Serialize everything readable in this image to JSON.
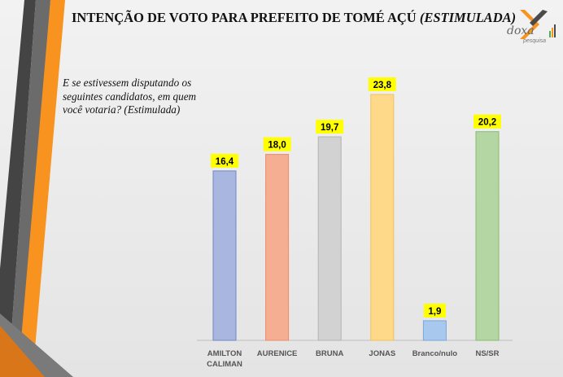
{
  "title_main": "INTENÇÃO DE VOTO PARA PREFEITO DE TOMÉ AÇÚ",
  "title_italic": "(ESTIMULADA)",
  "question": "E se estivessem disputando os seguintes candidatos, em quem você votaria? (Estimulada)",
  "logo": {
    "name": "doxa",
    "sub": "pesquisa",
    "colors": [
      "#f7941d",
      "#4a4a4a"
    ]
  },
  "chart_data": {
    "type": "bar",
    "categories": [
      "AMILTON CALIMAN",
      "AURENICE",
      "BRUNA",
      "JONAS",
      "Branco/nulo",
      "NS/SR"
    ],
    "values": [
      16.4,
      18.0,
      19.7,
      23.8,
      1.9,
      20.2
    ],
    "value_labels": [
      "16,4",
      "18,0",
      "19,7",
      "23,8",
      "1,9",
      "20,2"
    ],
    "colors": [
      "#a9b7e0",
      "#f6ae92",
      "#d2d2d2",
      "#fed98a",
      "#a8c8ee",
      "#b3d6a3"
    ],
    "edge_colors": [
      "#6f86c9",
      "#ee8a68",
      "#b3b3b3",
      "#f5c057",
      "#79a7dd",
      "#86bb70"
    ],
    "label_bg": "#ffff00",
    "ylim": [
      0,
      25
    ],
    "grid": false,
    "legend": "none"
  }
}
